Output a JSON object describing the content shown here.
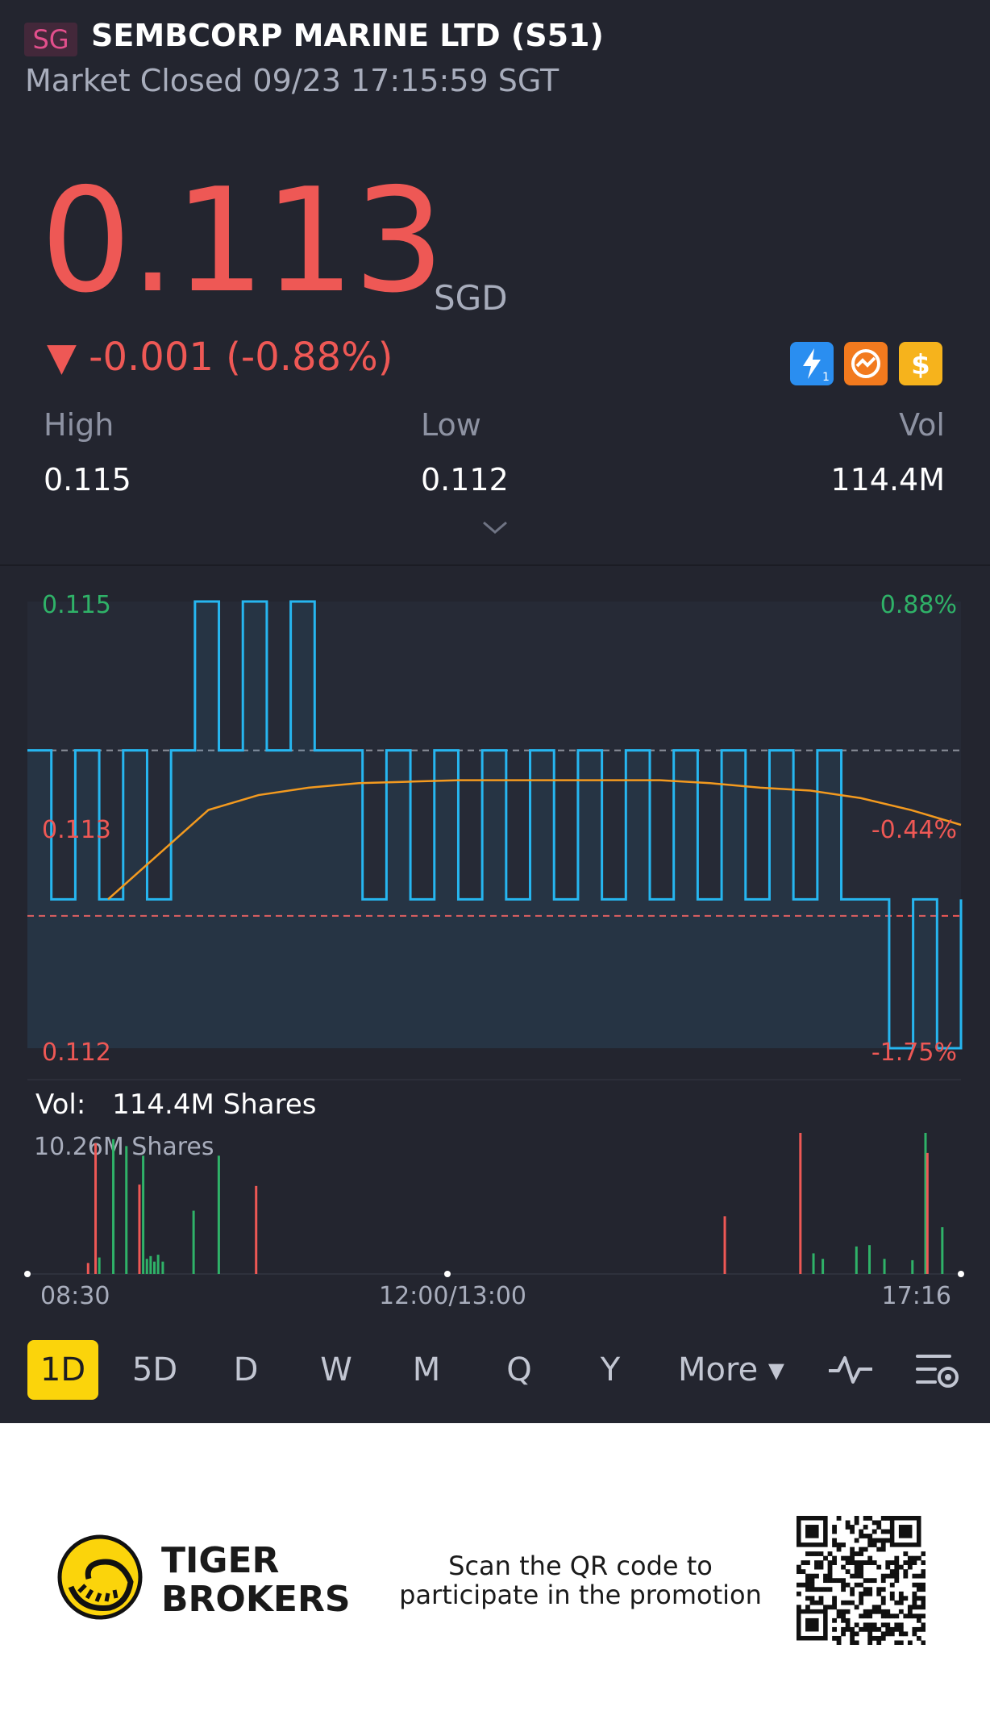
{
  "header": {
    "exchange_badge": "SG",
    "title": "SEMBCORP MARINE LTD (S51)",
    "status": "Market Closed 09/23 17:15:59 SGT"
  },
  "quote": {
    "price": "0.113",
    "currency": "SGD",
    "change": "▼ -0.001 (-0.88%)",
    "badges": [
      "lightning-icon",
      "stock-chart-icon",
      "dollar-icon"
    ]
  },
  "stats": {
    "high_label": "High",
    "high_value": "0.115",
    "low_label": "Low",
    "low_value": "0.112",
    "vol_label": "Vol",
    "vol_value": "114.4M"
  },
  "chart_data": {
    "type": "line",
    "price_axis": {
      "top": "0.115",
      "middle": "0.113",
      "bottom": "0.112",
      "ylim": [
        0.112,
        0.115
      ]
    },
    "pct_axis": {
      "top": "0.88%",
      "middle": "-0.44%",
      "bottom": "-1.75%"
    },
    "prev_close": 0.114,
    "series": [
      {
        "color": "#26b6f0",
        "values": [
          0.114,
          0.113,
          0.114,
          0.113,
          0.114,
          0.113,
          0.114,
          0.115,
          0.114,
          0.115,
          0.114,
          0.115,
          0.114,
          0.114,
          0.113,
          0.114,
          0.113,
          0.114,
          0.113,
          0.114,
          0.113,
          0.114,
          0.113,
          0.114,
          0.113,
          0.114,
          0.113,
          0.114,
          0.113,
          0.114,
          0.113,
          0.114,
          0.113,
          0.114,
          0.113,
          0.113,
          0.112,
          0.113,
          0.112,
          0.113
        ]
      },
      {
        "color": "#f39a1f",
        "values": [
          0.113,
          0.1133,
          0.1136,
          0.1137,
          0.11375,
          0.11378,
          0.11379,
          0.1138,
          0.1138,
          0.1138,
          0.1138,
          0.1138,
          0.11378,
          0.11375,
          0.11373,
          0.11368,
          0.1136,
          0.1135
        ]
      }
    ],
    "x_labels": [
      "08:30",
      "12:00/13:00",
      "17:16"
    ],
    "volume": {
      "label": "Vol:",
      "total": "114.4M Shares",
      "max": "10.26M Shares",
      "max_value": 10.26,
      "bars": [
        {
          "t": 0.065,
          "v": 0.8,
          "c": "r"
        },
        {
          "t": 0.073,
          "v": 9.5,
          "c": "r"
        },
        {
          "t": 0.077,
          "v": 1.2,
          "c": "g"
        },
        {
          "t": 0.092,
          "v": 9.8,
          "c": "g"
        },
        {
          "t": 0.106,
          "v": 9.3,
          "c": "g"
        },
        {
          "t": 0.12,
          "v": 6.5,
          "c": "r"
        },
        {
          "t": 0.124,
          "v": 8.6,
          "c": "g"
        },
        {
          "t": 0.128,
          "v": 1.1,
          "c": "g"
        },
        {
          "t": 0.132,
          "v": 1.3,
          "c": "g"
        },
        {
          "t": 0.136,
          "v": 0.9,
          "c": "g"
        },
        {
          "t": 0.14,
          "v": 1.4,
          "c": "g"
        },
        {
          "t": 0.145,
          "v": 0.9,
          "c": "g"
        },
        {
          "t": 0.178,
          "v": 4.6,
          "c": "g"
        },
        {
          "t": 0.205,
          "v": 8.6,
          "c": "g"
        },
        {
          "t": 0.245,
          "v": 6.4,
          "c": "r"
        },
        {
          "t": 0.747,
          "v": 4.2,
          "c": "r"
        },
        {
          "t": 0.828,
          "v": 10.26,
          "c": "r"
        },
        {
          "t": 0.842,
          "v": 1.5,
          "c": "g"
        },
        {
          "t": 0.852,
          "v": 1.1,
          "c": "g"
        },
        {
          "t": 0.888,
          "v": 2.0,
          "c": "g"
        },
        {
          "t": 0.902,
          "v": 2.1,
          "c": "g"
        },
        {
          "t": 0.918,
          "v": 1.1,
          "c": "g"
        },
        {
          "t": 0.948,
          "v": 1.0,
          "c": "g"
        },
        {
          "t": 0.962,
          "v": 10.26,
          "c": "g"
        },
        {
          "t": 0.964,
          "v": 8.8,
          "c": "r"
        },
        {
          "t": 0.98,
          "v": 3.4,
          "c": "g"
        }
      ]
    }
  },
  "periods": [
    "1D",
    "5D",
    "D",
    "W",
    "M",
    "Q",
    "Y",
    "More ▾"
  ],
  "tools": [
    "indicator-icon",
    "chart-settings-icon"
  ],
  "promo": {
    "brand_line1": "TIGER",
    "brand_line2": "BROKERS",
    "text_line1": "Scan the QR code to",
    "text_line2": "participate in the promotion"
  },
  "colors": {
    "up": "#2fb268",
    "down": "#ee5855",
    "accent": "#fbd40b",
    "line": "#26b6f0",
    "avg": "#f39a1f"
  }
}
